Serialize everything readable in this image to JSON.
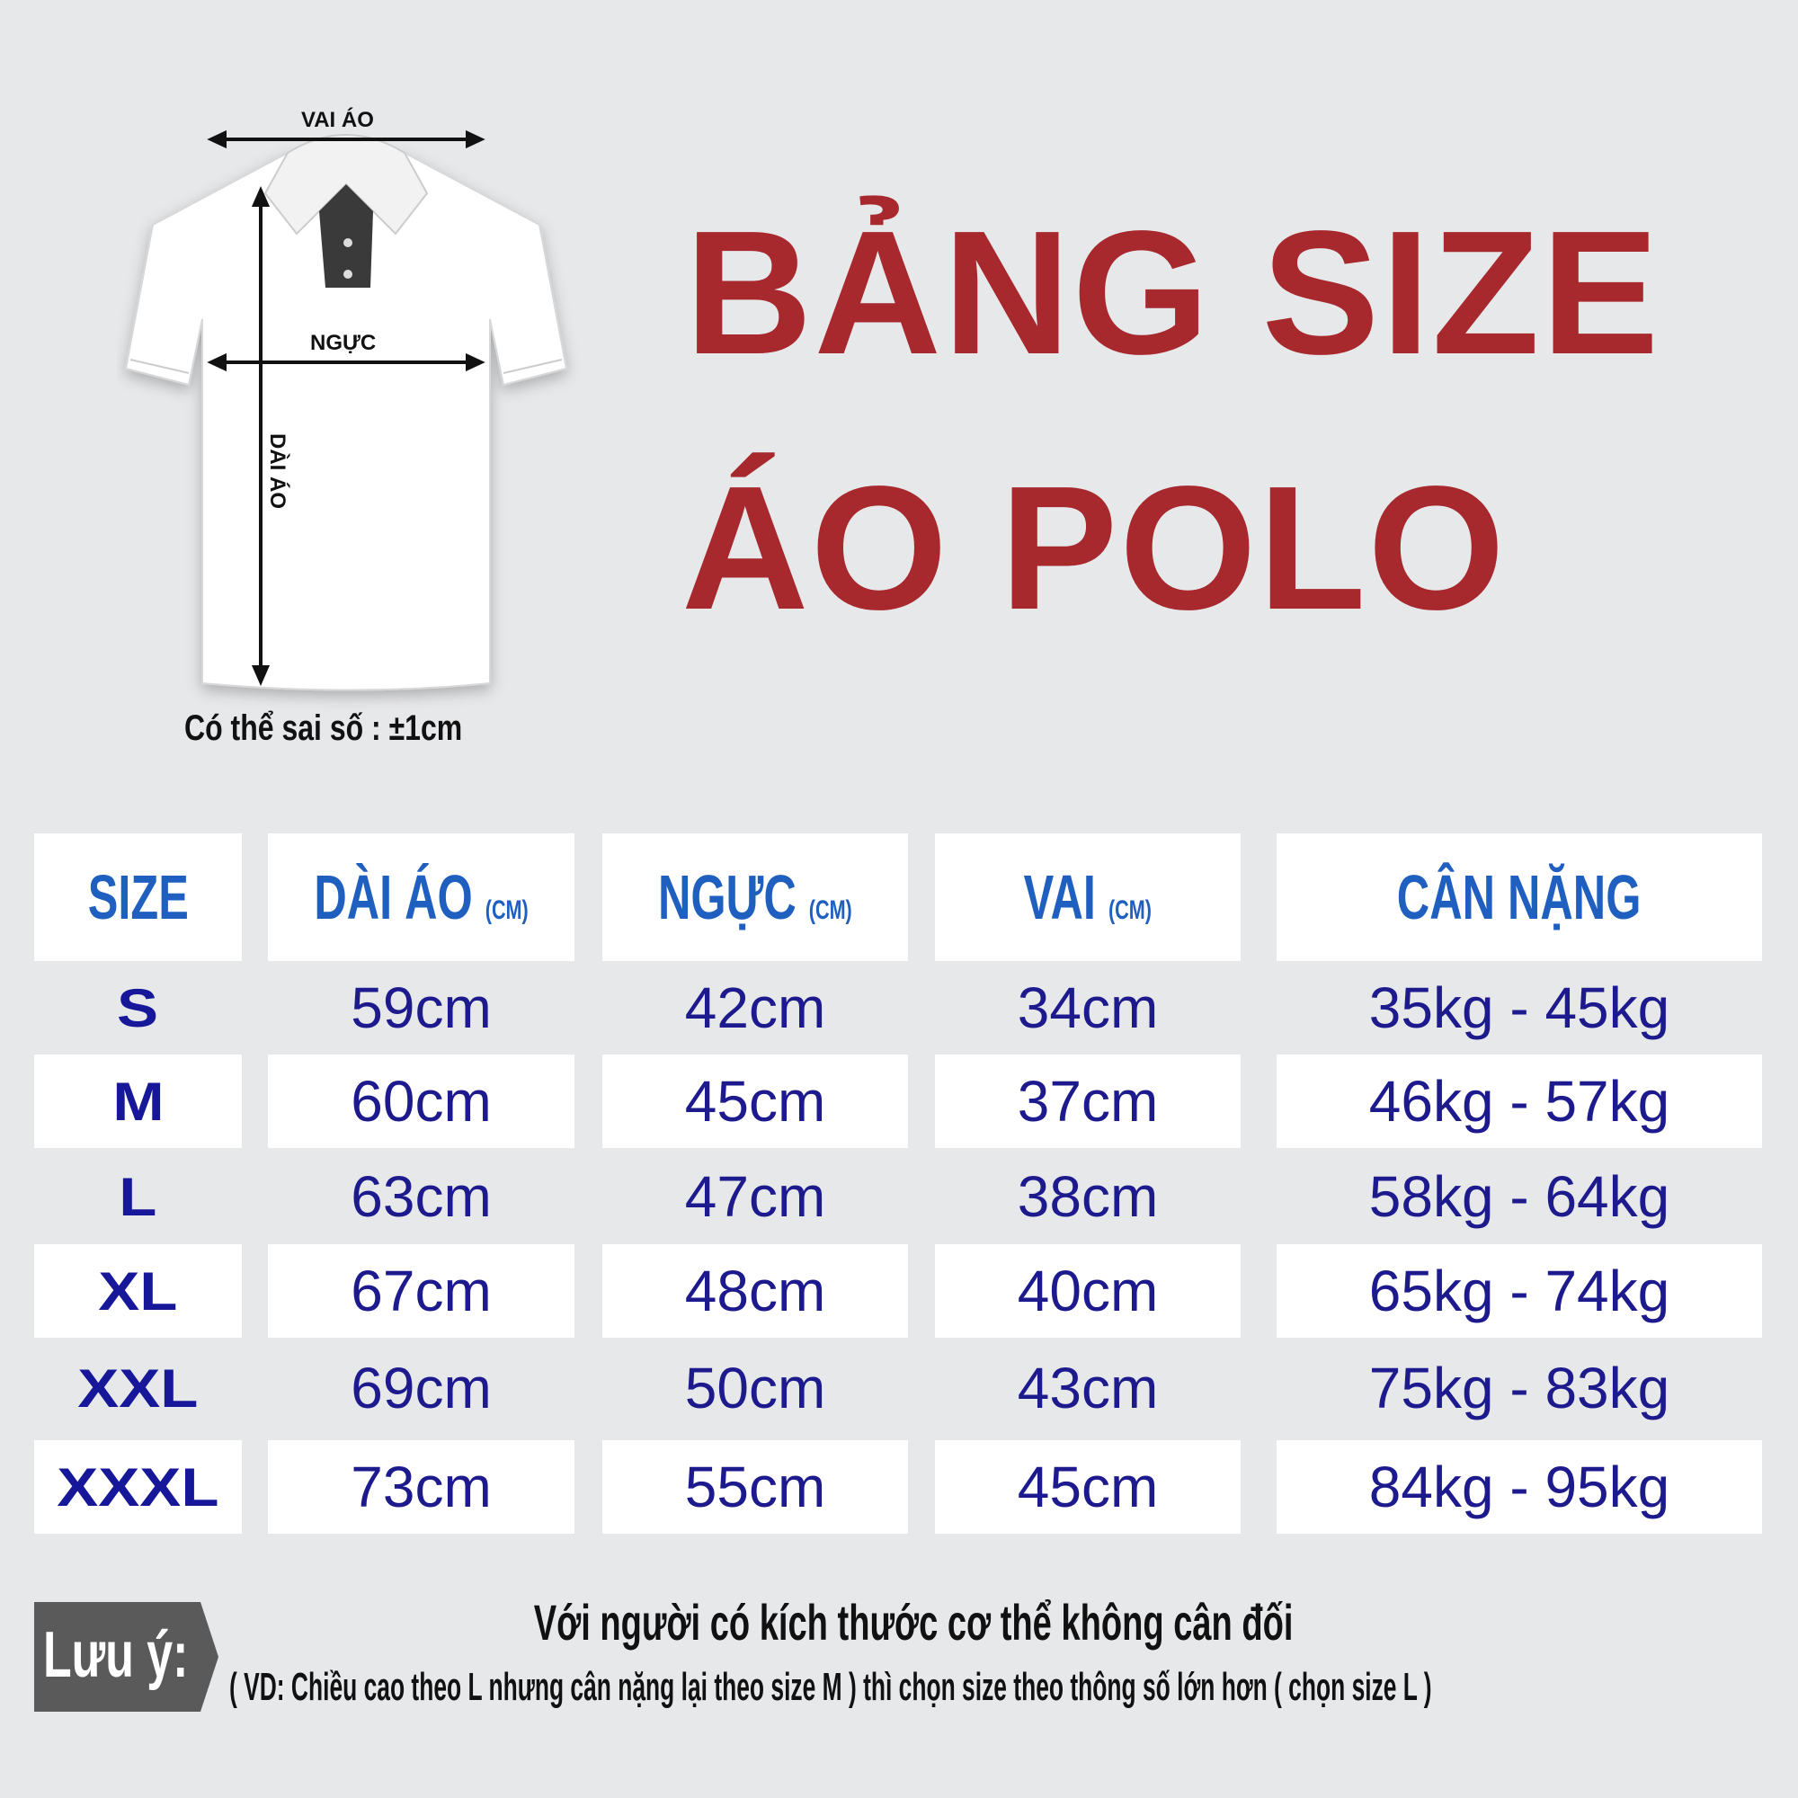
{
  "title": {
    "line1": "BẢNG SIZE",
    "line2": "ÁO POLO"
  },
  "diagram": {
    "shoulder_label": "VAI ÁO",
    "chest_label": "NGỰC",
    "length_label": "DÀI ÁO",
    "tolerance_note": "Có thể sai số : ±1cm"
  },
  "table": {
    "headers": [
      {
        "label": "SIZE",
        "unit": ""
      },
      {
        "label": "DÀI ÁO",
        "unit": "(CM)"
      },
      {
        "label": "NGỰC",
        "unit": "(CM)"
      },
      {
        "label": "VAI",
        "unit": "(CM)"
      },
      {
        "label": "CÂN NẶNG",
        "unit": ""
      }
    ],
    "rows": [
      [
        "S",
        "59cm",
        "42cm",
        "34cm",
        "35kg - 45kg"
      ],
      [
        "M",
        "60cm",
        "45cm",
        "37cm",
        "46kg - 57kg"
      ],
      [
        "L",
        "63cm",
        "47cm",
        "38cm",
        "58kg - 64kg"
      ],
      [
        "XL",
        "67cm",
        "48cm",
        "40cm",
        "65kg - 74kg"
      ],
      [
        "XXL",
        "69cm",
        "50cm",
        "43cm",
        "75kg - 83kg"
      ],
      [
        "XXXL",
        "73cm",
        "55cm",
        "45cm",
        "84kg - 95kg"
      ]
    ]
  },
  "note": {
    "label": "Lưu ý:",
    "line1": "Với người có kích thước cơ thể không cân đối",
    "line2": "( VD: Chiều cao theo L nhưng cân nặng lại theo size M ) thì chọn size theo thông số lớn hơn ( chọn size L )"
  },
  "colors": {
    "title": "#a7282d",
    "header": "#1f5fc0",
    "values": "#1d1a8e",
    "background": "#e7e8ea",
    "note_badge": "#5a5a5a"
  }
}
